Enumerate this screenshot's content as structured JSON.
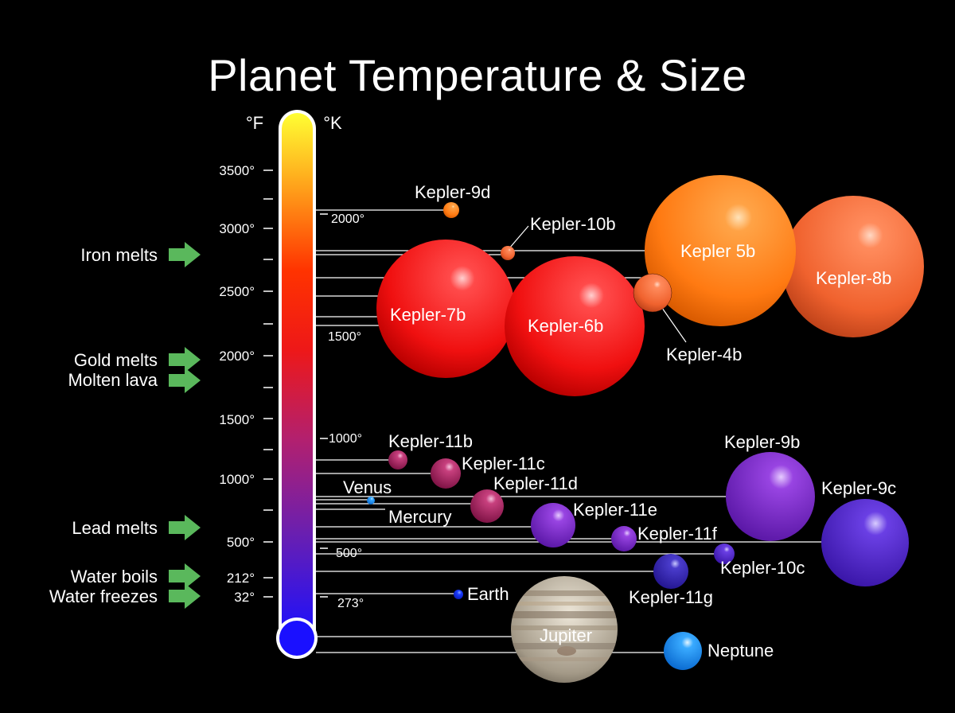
{
  "title": "Planet Temperature & Size",
  "thermometer": {
    "unit_f": "°F",
    "unit_k": "°K",
    "f_ticks": [
      "3500°",
      "3000°",
      "2500°",
      "2000°",
      "1500°",
      "1000°",
      "500°",
      "212°",
      "32°"
    ],
    "k_ticks": [
      "2000°",
      "1500°",
      "1000°",
      "500°",
      "273°"
    ]
  },
  "markers": [
    {
      "label": "Iron melts"
    },
    {
      "label": "Gold melts"
    },
    {
      "label": "Molten lava"
    },
    {
      "label": "Lead melts"
    },
    {
      "label": "Water boils"
    },
    {
      "label": "Water freezes"
    }
  ],
  "planets": [
    {
      "name": "Kepler-8b"
    },
    {
      "name": "Kepler 5b"
    },
    {
      "name": "Kepler-7b"
    },
    {
      "name": "Kepler-6b"
    },
    {
      "name": "Kepler-4b"
    },
    {
      "name": "Kepler-9d"
    },
    {
      "name": "Kepler-10b"
    },
    {
      "name": "Kepler-11b"
    },
    {
      "name": "Kepler-11c"
    },
    {
      "name": "Venus"
    },
    {
      "name": "Kepler-11d"
    },
    {
      "name": "Mercury"
    },
    {
      "name": "Kepler-11e"
    },
    {
      "name": "Kepler-11f"
    },
    {
      "name": "Kepler-9b"
    },
    {
      "name": "Kepler-9c"
    },
    {
      "name": "Kepler-10c"
    },
    {
      "name": "Kepler-11g"
    },
    {
      "name": "Earth"
    },
    {
      "name": "Jupiter"
    },
    {
      "name": "Neptune"
    }
  ]
}
